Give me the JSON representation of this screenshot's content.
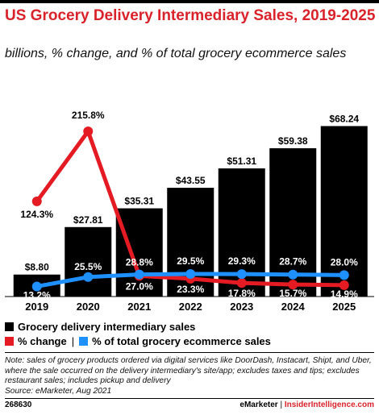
{
  "title": "US Grocery Delivery Intermediary Sales, 2019-2025",
  "subtitle": "billions, % change, and % of total grocery ecommerce sales",
  "colors": {
    "bar": "#000000",
    "change": "#e51b24",
    "share": "#1e90ff",
    "title": "#d9222a"
  },
  "chart_data": {
    "type": "bar",
    "categories": [
      "2019",
      "2020",
      "2021",
      "2022",
      "2023",
      "2024",
      "2025"
    ],
    "ylim": [
      0,
      75
    ],
    "series": [
      {
        "name": "Grocery delivery intermediary sales",
        "type": "bar",
        "values": [
          8.8,
          27.81,
          35.31,
          43.55,
          51.31,
          59.38,
          68.24
        ],
        "labels": [
          "$8.80",
          "$27.81",
          "$35.31",
          "$43.55",
          "$51.31",
          "$59.38",
          "$68.24"
        ]
      },
      {
        "name": "% change",
        "type": "line",
        "ylim": [
          0,
          250
        ],
        "values": [
          124.3,
          215.8,
          27.0,
          23.3,
          17.8,
          15.7,
          14.9
        ],
        "labels": [
          "124.3%",
          "215.8%",
          "27.0%",
          "23.3%",
          "17.8%",
          "15.7%",
          "14.9%"
        ]
      },
      {
        "name": "% of total grocery ecommerce sales",
        "type": "line",
        "ylim": [
          0,
          250
        ],
        "values": [
          13.2,
          25.5,
          28.8,
          29.5,
          29.3,
          28.7,
          28.0
        ],
        "labels": [
          "13.2%",
          "25.5%",
          "28.8%",
          "29.5%",
          "29.3%",
          "28.7%",
          "28.0%"
        ]
      }
    ],
    "legend": "bottom"
  },
  "legend": {
    "bar": "Grocery delivery intermediary sales",
    "change": "% change",
    "separator": "|",
    "share": "% of total grocery ecommerce sales"
  },
  "note": "Note: sales of grocery products ordered via digital services like DoorDash, Instacart, Shipt, and Uber, where the sale occurred on the delivery intermediary's site/app; excludes taxes and tips; excludes restaurant sales; includes pickup and delivery",
  "source": "Source: eMarketer, Aug 2021",
  "footer": {
    "id": "268630",
    "brand1": "eMarketer",
    "brand_sep": "|",
    "brand2": "InsiderIntelligence.com"
  }
}
